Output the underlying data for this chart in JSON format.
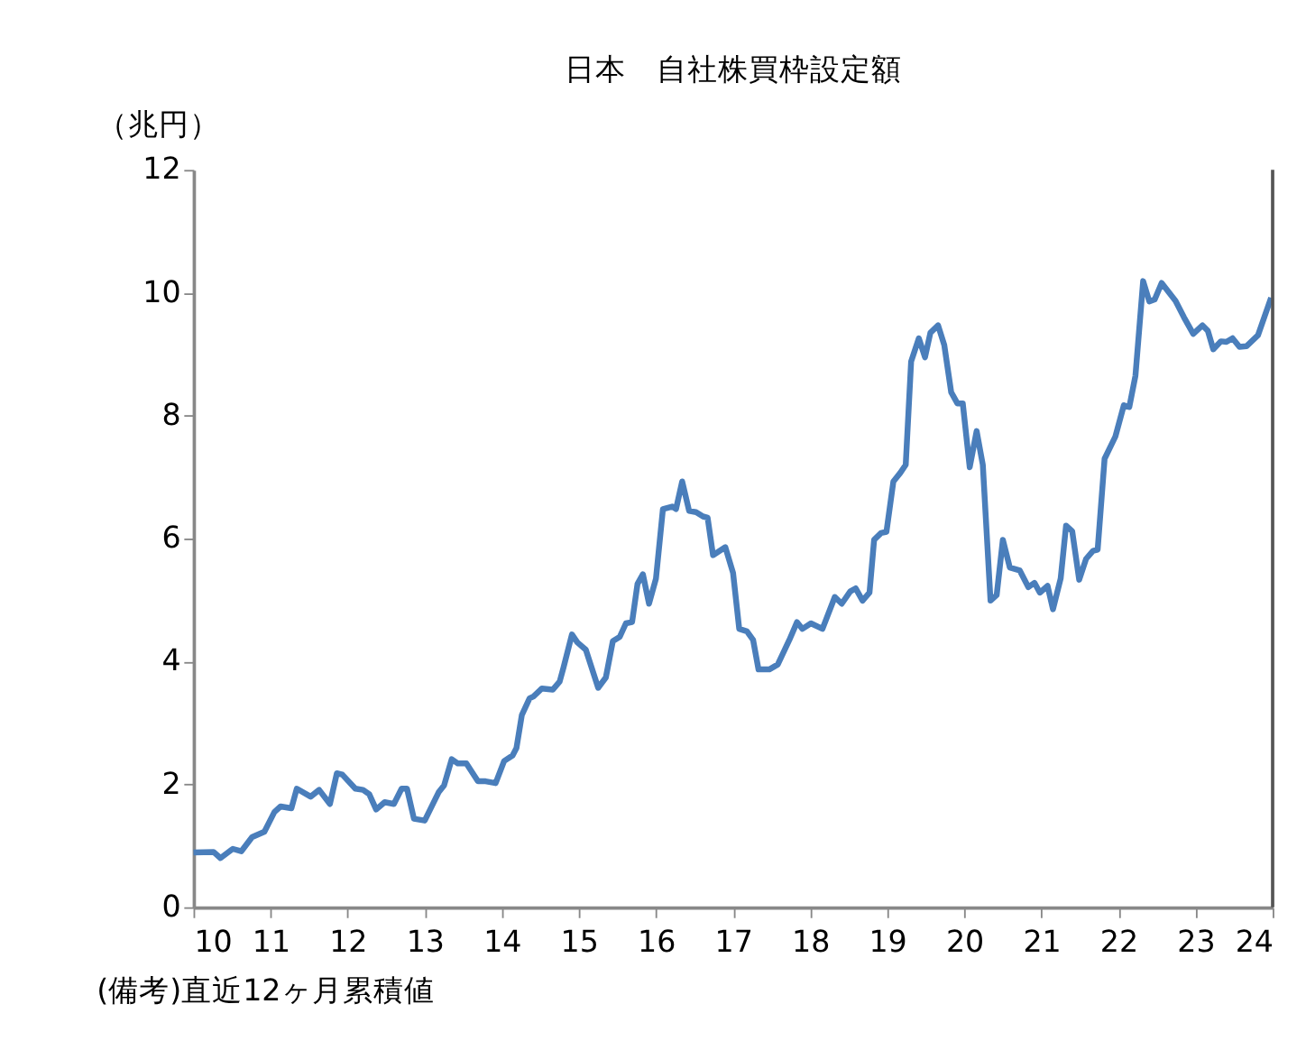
{
  "chart_data": {
    "type": "line",
    "title": "日本　自社株買枠設定額",
    "ylabel": "（兆円）",
    "annotations": [
      "(備考)直近12ヶ月累積値"
    ],
    "xlim": [
      10,
      24
    ],
    "xticks": [
      10,
      11,
      12,
      13,
      14,
      15,
      16,
      17,
      18,
      19,
      20,
      21,
      22,
      23,
      24
    ],
    "ylim": [
      0,
      12
    ],
    "yticks": [
      0,
      2,
      4,
      6,
      8,
      10,
      12
    ],
    "grid": false,
    "legend": false,
    "line_style": "solid",
    "marker": "none",
    "series": [
      {
        "color": "#4a7ebb",
        "x": [
          10.0,
          10.26,
          10.35,
          10.51,
          10.62,
          10.76,
          10.92,
          11.05,
          11.13,
          11.27,
          11.34,
          11.52,
          11.63,
          11.77,
          11.86,
          11.93,
          12.1,
          12.2,
          12.28,
          12.37,
          12.48,
          12.6,
          12.7,
          12.77,
          12.86,
          13.0,
          13.18,
          13.25,
          13.35,
          13.43,
          13.54,
          13.69,
          13.79,
          13.92,
          14.03,
          14.14,
          14.19,
          14.26,
          14.36,
          14.41,
          14.52,
          14.66,
          14.75,
          14.8,
          14.91,
          14.98,
          15.09,
          15.25,
          15.35,
          15.44,
          15.53,
          15.61,
          15.69,
          15.76,
          15.83,
          15.91,
          16.0,
          16.09,
          16.21,
          16.26,
          16.34,
          16.43,
          16.52,
          16.61,
          16.67,
          16.74,
          16.9,
          17.0,
          17.08,
          17.18,
          17.26,
          17.33,
          17.47,
          17.58,
          17.73,
          17.83,
          17.9,
          18.01,
          18.16,
          18.32,
          18.41,
          18.52,
          18.59,
          18.68,
          18.77,
          18.83,
          18.92,
          18.99,
          19.08,
          19.17,
          19.24,
          19.31,
          19.41,
          19.49,
          19.56,
          19.66,
          19.74,
          19.83,
          19.91,
          19.98,
          20.07,
          20.16,
          20.24,
          20.34,
          20.42,
          20.5,
          20.59,
          20.72,
          20.83,
          20.91,
          20.98,
          21.08,
          21.15,
          21.25,
          21.32,
          21.4,
          21.49,
          21.58,
          21.67,
          21.73,
          21.82,
          21.96,
          22.07,
          22.14,
          22.22,
          22.32,
          22.4,
          22.47,
          22.56,
          22.74,
          22.85,
          22.97,
          23.09,
          23.16,
          23.23,
          23.33,
          23.4,
          23.48,
          23.57,
          23.66,
          23.81,
          23.98
        ],
        "values": [
          0.89,
          0.9,
          0.8,
          0.95,
          0.91,
          1.14,
          1.23,
          1.55,
          1.64,
          1.61,
          1.93,
          1.8,
          1.91,
          1.68,
          2.18,
          2.16,
          1.93,
          1.91,
          1.84,
          1.59,
          1.71,
          1.68,
          1.93,
          1.93,
          1.44,
          1.41,
          1.87,
          1.98,
          2.41,
          2.34,
          2.34,
          2.05,
          2.05,
          2.02,
          2.38,
          2.47,
          2.59,
          3.13,
          3.4,
          3.43,
          3.56,
          3.54,
          3.67,
          3.9,
          4.44,
          4.31,
          4.19,
          3.57,
          3.74,
          4.33,
          4.4,
          4.62,
          4.64,
          5.26,
          5.42,
          4.94,
          5.35,
          6.48,
          6.52,
          6.48,
          6.93,
          6.45,
          6.43,
          6.36,
          6.34,
          5.73,
          5.86,
          5.44,
          4.53,
          4.49,
          4.35,
          3.87,
          3.87,
          3.95,
          4.35,
          4.64,
          4.53,
          4.62,
          4.53,
          5.05,
          4.94,
          5.14,
          5.19,
          4.99,
          5.12,
          5.98,
          6.09,
          6.11,
          6.93,
          7.07,
          7.2,
          8.88,
          9.26,
          8.95,
          9.35,
          9.47,
          9.15,
          8.38,
          8.2,
          8.2,
          7.16,
          7.75,
          7.2,
          4.99,
          5.08,
          5.98,
          5.53,
          5.48,
          5.21,
          5.28,
          5.12,
          5.23,
          4.85,
          5.35,
          6.21,
          6.12,
          5.33,
          5.67,
          5.8,
          5.82,
          7.3,
          7.66,
          8.17,
          8.14,
          8.65,
          10.19,
          9.86,
          9.89,
          10.16,
          9.87,
          9.6,
          9.33,
          9.47,
          9.38,
          9.08,
          9.21,
          9.2,
          9.26,
          9.12,
          9.13,
          9.31,
          9.92
        ]
      }
    ]
  }
}
